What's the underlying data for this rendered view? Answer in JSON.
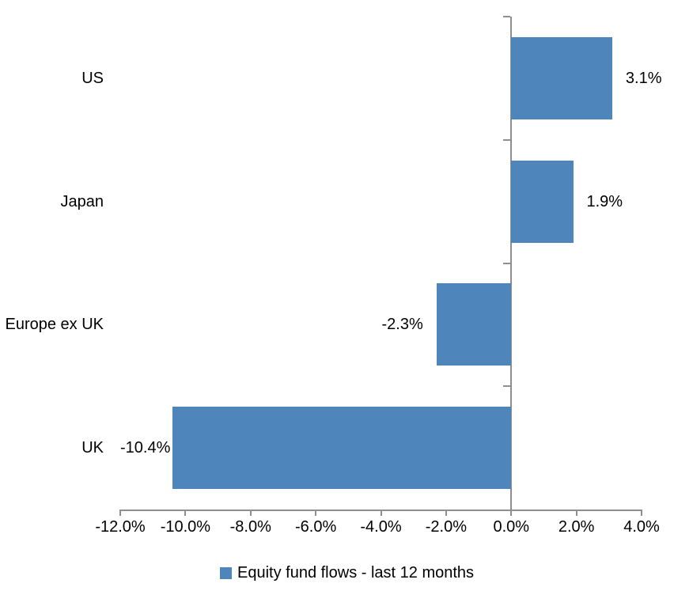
{
  "chart_data": {
    "type": "bar",
    "orientation": "horizontal",
    "title": "",
    "series_name": "Equity fund flows - last 12 months",
    "categories": [
      "US",
      "Japan",
      "Europe ex UK",
      "UK"
    ],
    "values": [
      3.1,
      1.9,
      -2.3,
      -10.4
    ],
    "data_labels": [
      "3.1%",
      "1.9%",
      "-2.3%",
      "-10.4%"
    ],
    "xlim": [
      -12,
      4
    ],
    "x_ticks": [
      -12,
      -10,
      -8,
      -6,
      -4,
      -2,
      0,
      2,
      4
    ],
    "x_tick_labels": [
      "-12.0%",
      "-10.0%",
      "-8.0%",
      "-6.0%",
      "-4.0%",
      "-2.0%",
      "0.0%",
      "2.0%",
      "4.0%"
    ],
    "grid": "off",
    "legend_position": "bottom",
    "bar_color": "#4E86BC",
    "axis_color": "#8F8F8F",
    "text_color": "#000000"
  }
}
